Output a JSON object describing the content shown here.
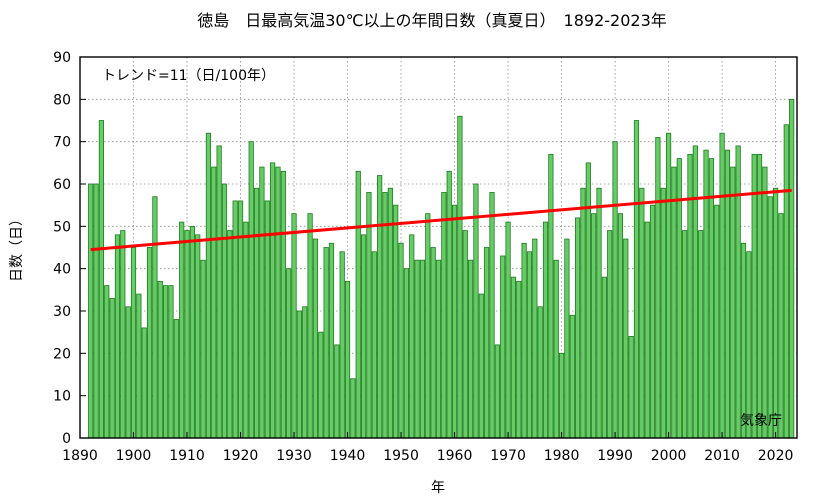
{
  "chart_data": {
    "type": "bar",
    "title": "徳島　日最高気温30℃以上の年間日数（真夏日）　1892-2023年",
    "xlabel": "年",
    "ylabel": "日数（日）",
    "ylim": [
      0,
      90
    ],
    "xlim": [
      1890,
      2024
    ],
    "yticks": [
      0,
      10,
      20,
      30,
      40,
      50,
      60,
      70,
      80,
      90
    ],
    "xticks": [
      1890,
      1900,
      1910,
      1920,
      1930,
      1940,
      1950,
      1960,
      1970,
      1980,
      1990,
      2000,
      2010,
      2020
    ],
    "grid": true,
    "trend_label": "トレンド=11（日/100年）",
    "trend": {
      "start_year": 1892,
      "start_value": 44.5,
      "end_year": 2023,
      "end_value": 58.5,
      "color": "#ff0000"
    },
    "source": "気象庁",
    "bar_color": "#66cc66",
    "bar_edge_color": "#1f7a1f",
    "series": [
      {
        "start_year": 1892,
        "values": [
          60,
          60,
          75,
          36,
          33,
          48,
          49,
          31,
          45,
          34,
          26,
          45,
          57,
          37,
          36,
          36,
          28,
          51,
          49,
          50,
          48,
          42,
          72,
          64,
          69,
          60,
          49,
          56,
          56,
          51,
          70,
          59,
          64,
          56,
          65,
          64,
          63,
          40,
          53,
          30,
          31,
          53,
          47,
          25,
          45,
          46,
          22,
          44,
          37,
          14,
          63,
          48,
          58,
          44,
          62,
          58,
          59,
          55,
          46,
          40,
          48,
          42,
          42,
          53,
          45,
          42,
          58,
          63,
          55,
          76,
          49,
          42,
          60,
          34,
          45,
          58,
          22,
          43,
          51,
          38,
          37,
          46,
          44,
          47,
          31,
          51,
          67,
          42,
          20,
          47,
          29,
          52,
          59,
          65,
          53,
          59,
          38,
          49,
          70,
          53,
          47,
          24,
          75,
          59,
          51,
          55,
          71,
          59,
          72,
          64,
          66,
          49,
          67,
          69,
          49,
          68,
          66,
          55,
          72,
          68,
          64,
          69,
          46,
          44,
          67,
          67,
          64,
          57,
          59,
          53,
          74,
          80
        ]
      }
    ]
  }
}
